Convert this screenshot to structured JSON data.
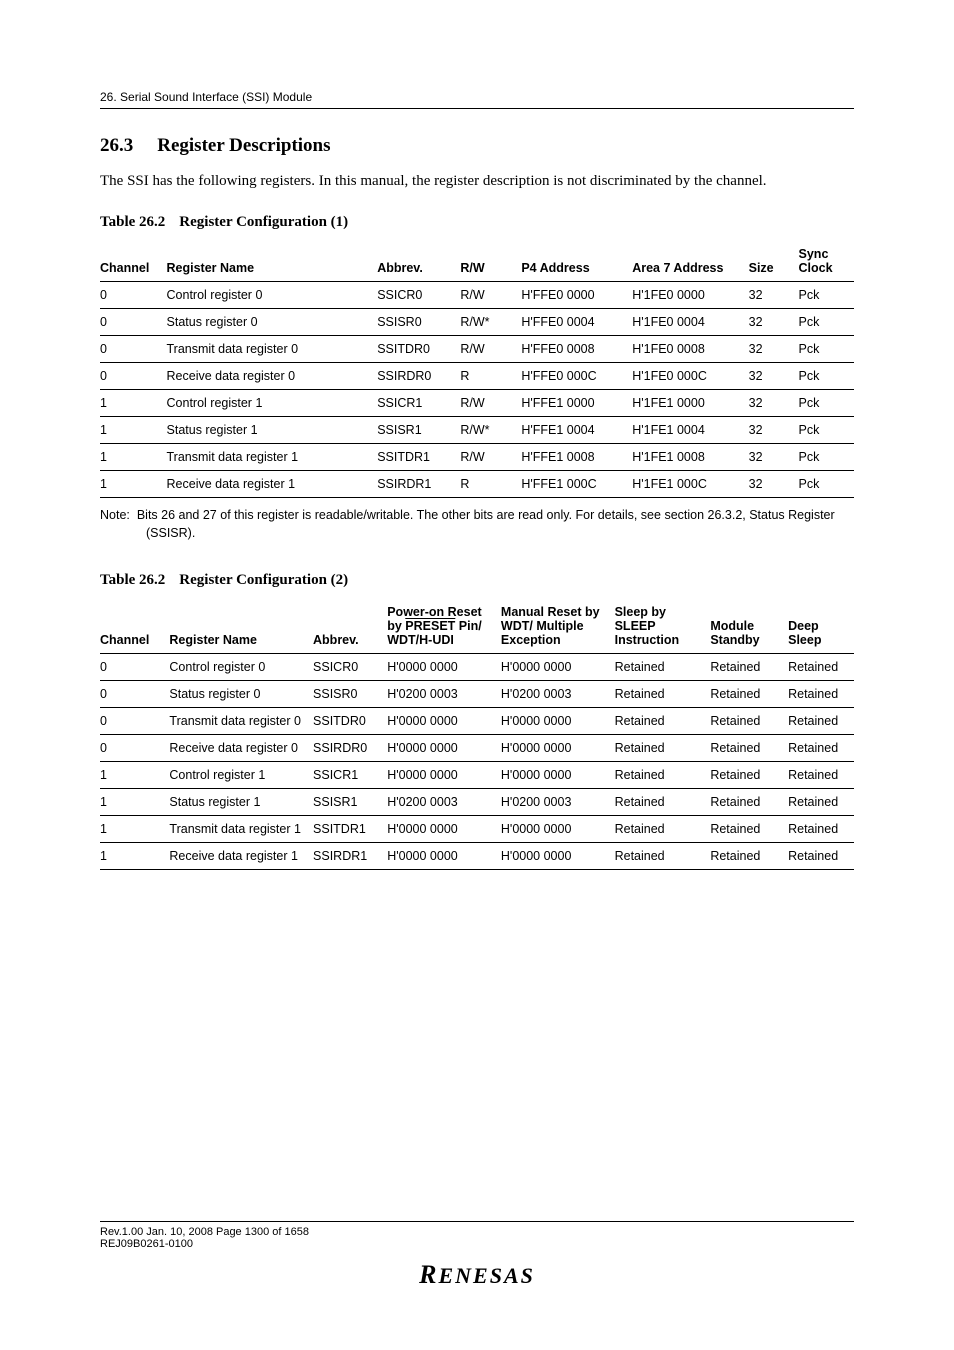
{
  "header": "26.  Serial Sound Interface (SSI) Module",
  "section": {
    "number": "26.3",
    "title": "Register Descriptions"
  },
  "intro": "The SSI has the following registers.  In this manual, the register description is not discriminated by the channel.",
  "table1": {
    "caption_lead": "Table 26.2",
    "caption_rest": "Register Configuration (1)",
    "columns": [
      "Channel",
      "Register Name",
      "Abbrev.",
      "R/W",
      "P4 Address",
      "Area 7 Address",
      "Size",
      "Sync Clock"
    ],
    "col_widths": [
      "60px",
      "190px",
      "75px",
      "55px",
      "100px",
      "105px",
      "45px",
      "50px"
    ],
    "rows": [
      [
        "0",
        "Control register 0",
        "SSICR0",
        "R/W",
        "H'FFE0 0000",
        "H'1FE0 0000",
        "32",
        "Pck"
      ],
      [
        "0",
        "Status register 0",
        "SSISR0",
        "R/W*",
        "H'FFE0 0004",
        "H'1FE0 0004",
        "32",
        "Pck"
      ],
      [
        "0",
        "Transmit data register 0",
        "SSITDR0",
        "R/W",
        "H'FFE0 0008",
        "H'1FE0 0008",
        "32",
        "Pck"
      ],
      [
        "0",
        "Receive data register 0",
        "SSIRDR0",
        "R",
        "H'FFE0 000C",
        "H'1FE0 000C",
        "32",
        "Pck"
      ],
      [
        "1",
        "Control register 1",
        "SSICR1",
        "R/W",
        "H'FFE1 0000",
        "H'1FE1 0000",
        "32",
        "Pck"
      ],
      [
        "1",
        "Status register 1",
        "SSISR1",
        "R/W*",
        "H'FFE1 0004",
        "H'1FE1 0004",
        "32",
        "Pck"
      ],
      [
        "1",
        "Transmit data register 1",
        "SSITDR1",
        "R/W",
        "H'FFE1 0008",
        "H'1FE1 0008",
        "32",
        "Pck"
      ],
      [
        "1",
        "Receive data register 1",
        "SSIRDR1",
        "R",
        "H'FFE1 000C",
        "H'1FE1 000C",
        "32",
        "Pck"
      ]
    ]
  },
  "note_label": "Note:",
  "note_text": "Bits 26 and 27 of this register is readable/writable.  The other bits are read only.  For details, see section 26.3.2, Status Register (SSISR).",
  "table2": {
    "caption_lead": "Table 26.2",
    "caption_rest": "Register Configuration (2)",
    "col_widths": [
      "58px",
      "120px",
      "62px",
      "95px",
      "95px",
      "80px",
      "65px",
      "55px"
    ],
    "head": {
      "c0": "Channel",
      "c1": "Register Name",
      "c2": "Abbrev.",
      "c3_pre": "Power-on Reset by ",
      "c3_over": "PRESET",
      "c3_post": " Pin/ WDT/H-UDI",
      "c4": "Manual Reset by WDT/ Multiple Exception",
      "c5": "Sleep by SLEEP Instruction",
      "c6": "Module Standby",
      "c7": "Deep Sleep"
    },
    "rows": [
      [
        "0",
        "Control register 0",
        "SSICR0",
        "H'0000 0000",
        "H'0000 0000",
        "Retained",
        "Retained",
        "Retained"
      ],
      [
        "0",
        "Status register 0",
        "SSISR0",
        "H'0200 0003",
        "H'0200 0003",
        "Retained",
        "Retained",
        "Retained"
      ],
      [
        "0",
        "Transmit data register 0",
        "SSITDR0",
        "H'0000 0000",
        "H'0000 0000",
        "Retained",
        "Retained",
        "Retained"
      ],
      [
        "0",
        "Receive data register 0",
        "SSIRDR0",
        "H'0000 0000",
        "H'0000 0000",
        "Retained",
        "Retained",
        "Retained"
      ],
      [
        "1",
        "Control register 1",
        "SSICR1",
        "H'0000 0000",
        "H'0000 0000",
        "Retained",
        "Retained",
        "Retained"
      ],
      [
        "1",
        "Status register 1",
        "SSISR1",
        "H'0200 0003",
        "H'0200 0003",
        "Retained",
        "Retained",
        "Retained"
      ],
      [
        "1",
        "Transmit data register 1",
        "SSITDR1",
        "H'0000 0000",
        "H'0000 0000",
        "Retained",
        "Retained",
        "Retained"
      ],
      [
        "1",
        "Receive data register 1",
        "SSIRDR1",
        "H'0000 0000",
        "H'0000 0000",
        "Retained",
        "Retained",
        "Retained"
      ]
    ]
  },
  "footer": {
    "line1": "Rev.1.00  Jan. 10, 2008  Page 1300 of 1658",
    "line2": "REJ09B0261-0100",
    "logo": "RENESAS"
  }
}
